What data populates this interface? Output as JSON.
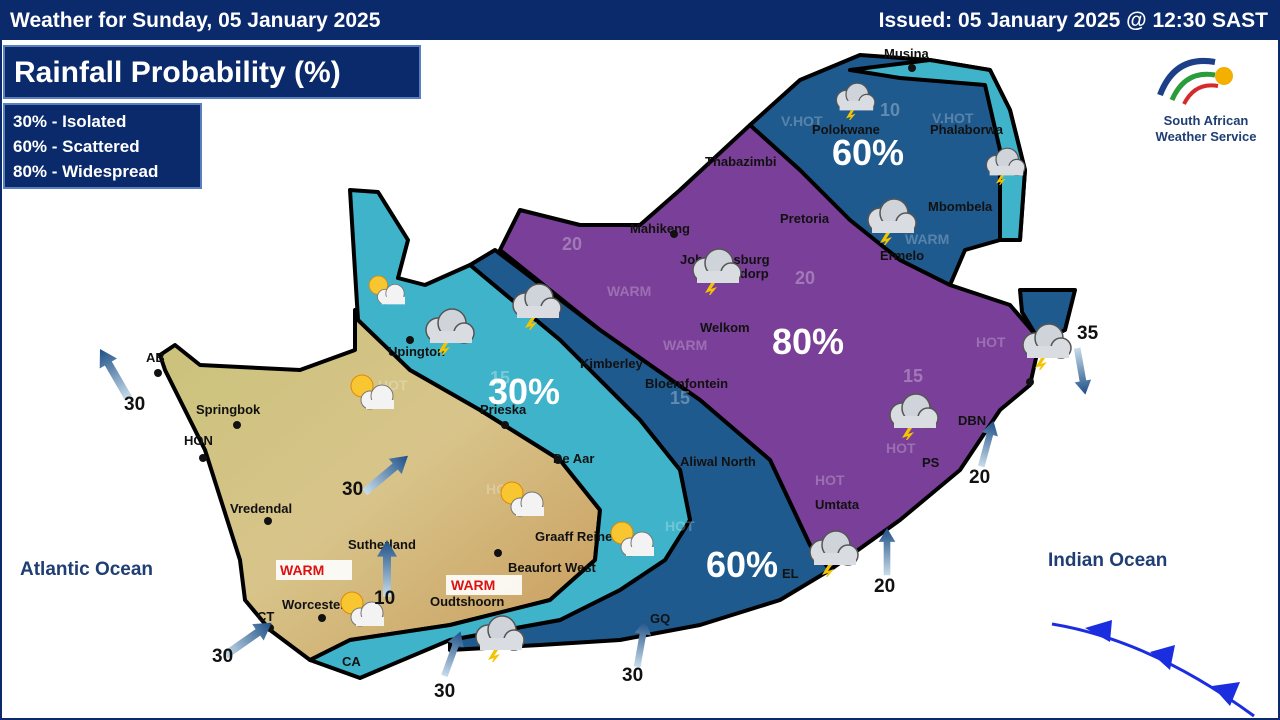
{
  "header": {
    "title": "Weather for Sunday, 05 January 2025",
    "issued": "Issued: 05 January 2025  @ 12:30 SAST"
  },
  "panel": {
    "title": "Rainfall Probability (%)",
    "legend": [
      "30% - Isolated",
      "60% - Scattered",
      "80% - Widespread"
    ]
  },
  "logo": {
    "line1": "South African",
    "line2": "Weather Service"
  },
  "zones": [
    "60%",
    "80%",
    "30%",
    "60%"
  ],
  "oceans": [
    "Atlantic Ocean",
    "Indian Ocean"
  ],
  "places": [
    "Musina",
    "Polokwane",
    "Phalaborwa",
    "Thabazimbi",
    "Mbombela",
    "Pretoria",
    "Mahikeng",
    "Ermelo",
    "Johannesburg",
    "Klerksdorp",
    "Welkom",
    "Kimberley",
    "Bloemfontein",
    "Upington",
    "Prieska",
    "De Aar",
    "Aliwal North",
    "AB",
    "Springbok",
    "HON",
    "Vredendal",
    "Sutherland",
    "Graaff Reinet",
    "Beaufort West",
    "Worcester",
    "CT",
    "Oudtshoorn",
    "Umtata",
    "EL",
    "GQ",
    "CA",
    "DBN",
    "PS"
  ],
  "temperatures": [
    "WARM",
    "WARM",
    "WARM",
    "WARM",
    "WARM",
    "HOT",
    "HOT",
    "HOT",
    "HOT",
    "V.HOT",
    "V.HOT",
    "HOT",
    "HOT"
  ],
  "temps": [
    10,
    20,
    20,
    15,
    15,
    15
  ],
  "winds": [
    30,
    30,
    10,
    30,
    30,
    30,
    20,
    20,
    35
  ]
}
